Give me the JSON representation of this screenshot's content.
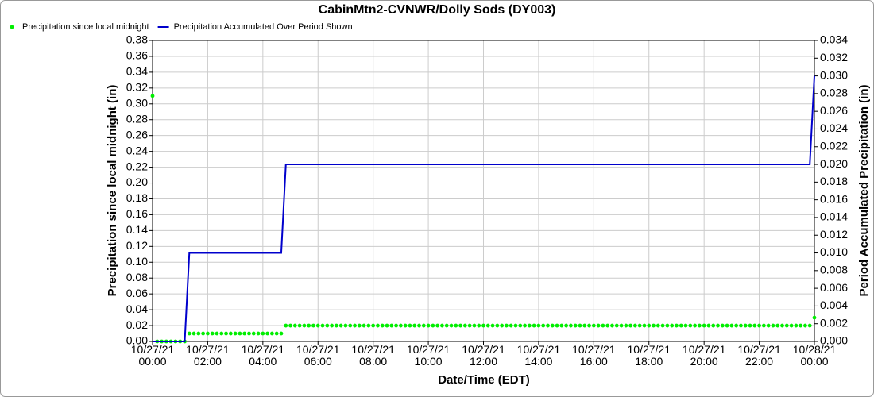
{
  "chart_data": {
    "type": "scatter-step",
    "title": "CabinMtn2-CVNWR/Dolly Sods (DY003)",
    "xlabel": "Date/Time (EDT)",
    "ylabel": "Precipitation since local midnight (in)",
    "y2label": "Period Accumulated Precipitation (in)",
    "grid": true,
    "legend": "top-left",
    "x": [
      0,
      10,
      20,
      30,
      40,
      50,
      60,
      70,
      80,
      90,
      100,
      110,
      120,
      130,
      140,
      150,
      160,
      170,
      180,
      190,
      200,
      210,
      220,
      230,
      240,
      250,
      260,
      270,
      280,
      290,
      300,
      310,
      320,
      330,
      340,
      350,
      360,
      370,
      380,
      390,
      400,
      410,
      420,
      430,
      440,
      450,
      460,
      470,
      480,
      490,
      500,
      510,
      520,
      530,
      540,
      550,
      560,
      570,
      580,
      590,
      600,
      610,
      620,
      630,
      640,
      650,
      660,
      670,
      680,
      690,
      700,
      710,
      720,
      730,
      740,
      750,
      760,
      770,
      780,
      790,
      800,
      810,
      820,
      830,
      840,
      850,
      860,
      870,
      880,
      890,
      900,
      910,
      920,
      930,
      940,
      950,
      960,
      970,
      980,
      990,
      1000,
      1010,
      1020,
      1030,
      1040,
      1050,
      1060,
      1070,
      1080,
      1090,
      1100,
      1110,
      1120,
      1130,
      1140,
      1150,
      1160,
      1170,
      1180,
      1190,
      1200,
      1210,
      1220,
      1230,
      1240,
      1250,
      1260,
      1270,
      1280,
      1290,
      1300,
      1310,
      1320,
      1330,
      1340,
      1350,
      1360,
      1370,
      1380,
      1390,
      1400,
      1410,
      1420,
      1430,
      1440
    ],
    "xlim": [
      0,
      1440
    ],
    "xticks": [
      {
        "value": 0,
        "label": "10/27/21 00:00"
      },
      {
        "value": 120,
        "label": "10/27/21 02:00"
      },
      {
        "value": 240,
        "label": "10/27/21 04:00"
      },
      {
        "value": 360,
        "label": "10/27/21 06:00"
      },
      {
        "value": 480,
        "label": "10/27/21 08:00"
      },
      {
        "value": 600,
        "label": "10/27/21 10:00"
      },
      {
        "value": 720,
        "label": "10/27/21 12:00"
      },
      {
        "value": 840,
        "label": "10/27/21 14:00"
      },
      {
        "value": 960,
        "label": "10/27/21 16:00"
      },
      {
        "value": 1080,
        "label": "10/27/21 18:00"
      },
      {
        "value": 1200,
        "label": "10/27/21 20:00"
      },
      {
        "value": 1320,
        "label": "10/27/21 22:00"
      },
      {
        "value": 1440,
        "label": "10/28/21 00:00"
      }
    ],
    "ylim": [
      0,
      0.38
    ],
    "yticks": [
      {
        "value": 0,
        "label": "0.00"
      },
      0.02,
      0.04,
      0.06,
      0.08,
      {
        "value": 0.1,
        "label": "0.10"
      },
      0.12,
      0.14,
      0.16,
      0.18,
      {
        "value": 0.2,
        "label": "0.20"
      },
      0.22,
      0.24,
      0.26,
      0.28,
      {
        "value": 0.3,
        "label": "0.30"
      },
      0.32,
      0.34,
      0.36,
      0.38
    ],
    "y2lim": [
      0,
      0.034
    ],
    "y2ticks": [
      {
        "value": 0,
        "label": "0.000"
      },
      0.002,
      0.004,
      0.006,
      0.008,
      {
        "value": 0.01,
        "label": "0.010"
      },
      0.012,
      0.014,
      0.016,
      0.018,
      {
        "value": 0.02,
        "label": "0.020"
      },
      0.022,
      0.024,
      0.026,
      0.028,
      {
        "value": 0.03,
        "label": "0.030"
      },
      0.032,
      0.034
    ],
    "series": [
      {
        "name": "Precipitation since local midnight",
        "color": "#00ee00",
        "kind": "points",
        "values": [
          0.31,
          0,
          0,
          0,
          0,
          0,
          0,
          0,
          0.01,
          0.01,
          0.01,
          0.01,
          0.01,
          0.01,
          0.01,
          0.01,
          0.01,
          0.01,
          0.01,
          0.01,
          0.01,
          0.01,
          0.01,
          0.01,
          0.01,
          0.01,
          0.01,
          0.01,
          0.01,
          0.02,
          0.02,
          0.02,
          0.02,
          0.02,
          0.02,
          0.02,
          0.02,
          0.02,
          0.02,
          0.02,
          0.02,
          0.02,
          0.02,
          0.02,
          0.02,
          0.02,
          0.02,
          0.02,
          0.02,
          0.02,
          0.02,
          0.02,
          0.02,
          0.02,
          0.02,
          0.02,
          0.02,
          0.02,
          0.02,
          0.02,
          0.02,
          0.02,
          0.02,
          0.02,
          0.02,
          0.02,
          0.02,
          0.02,
          0.02,
          0.02,
          0.02,
          0.02,
          0.02,
          0.02,
          0.02,
          0.02,
          0.02,
          0.02,
          0.02,
          0.02,
          0.02,
          0.02,
          0.02,
          0.02,
          0.02,
          0.02,
          0.02,
          0.02,
          0.02,
          0.02,
          0.02,
          0.02,
          0.02,
          0.02,
          0.02,
          0.02,
          0.02,
          0.02,
          0.02,
          0.02,
          0.02,
          0.02,
          0.02,
          0.02,
          0.02,
          0.02,
          0.02,
          0.02,
          0.02,
          0.02,
          0.02,
          0.02,
          0.02,
          0.02,
          0.02,
          0.02,
          0.02,
          0.02,
          0.02,
          0.02,
          0.02,
          0.02,
          0.02,
          0.02,
          0.02,
          0.02,
          0.02,
          0.02,
          0.02,
          0.02,
          0.02,
          0.02,
          0.02,
          0.02,
          0.02,
          0.02,
          0.02,
          0.02,
          0.02,
          0.02,
          0.02,
          0.02,
          0.02,
          0.02,
          0.03
        ]
      },
      {
        "name": "Precipitation Accumulated Over Period Shown",
        "color": "#0000cc",
        "kind": "line",
        "axis": "y2",
        "values": [
          0,
          0,
          0,
          0,
          0,
          0,
          0,
          0,
          0.01,
          0.01,
          0.01,
          0.01,
          0.01,
          0.01,
          0.01,
          0.01,
          0.01,
          0.01,
          0.01,
          0.01,
          0.01,
          0.01,
          0.01,
          0.01,
          0.01,
          0.01,
          0.01,
          0.01,
          0.01,
          0.02,
          0.02,
          0.02,
          0.02,
          0.02,
          0.02,
          0.02,
          0.02,
          0.02,
          0.02,
          0.02,
          0.02,
          0.02,
          0.02,
          0.02,
          0.02,
          0.02,
          0.02,
          0.02,
          0.02,
          0.02,
          0.02,
          0.02,
          0.02,
          0.02,
          0.02,
          0.02,
          0.02,
          0.02,
          0.02,
          0.02,
          0.02,
          0.02,
          0.02,
          0.02,
          0.02,
          0.02,
          0.02,
          0.02,
          0.02,
          0.02,
          0.02,
          0.02,
          0.02,
          0.02,
          0.02,
          0.02,
          0.02,
          0.02,
          0.02,
          0.02,
          0.02,
          0.02,
          0.02,
          0.02,
          0.02,
          0.02,
          0.02,
          0.02,
          0.02,
          0.02,
          0.02,
          0.02,
          0.02,
          0.02,
          0.02,
          0.02,
          0.02,
          0.02,
          0.02,
          0.02,
          0.02,
          0.02,
          0.02,
          0.02,
          0.02,
          0.02,
          0.02,
          0.02,
          0.02,
          0.02,
          0.02,
          0.02,
          0.02,
          0.02,
          0.02,
          0.02,
          0.02,
          0.02,
          0.02,
          0.02,
          0.02,
          0.02,
          0.02,
          0.02,
          0.02,
          0.02,
          0.02,
          0.02,
          0.02,
          0.02,
          0.02,
          0.02,
          0.02,
          0.02,
          0.02,
          0.02,
          0.02,
          0.02,
          0.02,
          0.02,
          0.02,
          0.02,
          0.02,
          0.02,
          0.03
        ]
      }
    ]
  }
}
